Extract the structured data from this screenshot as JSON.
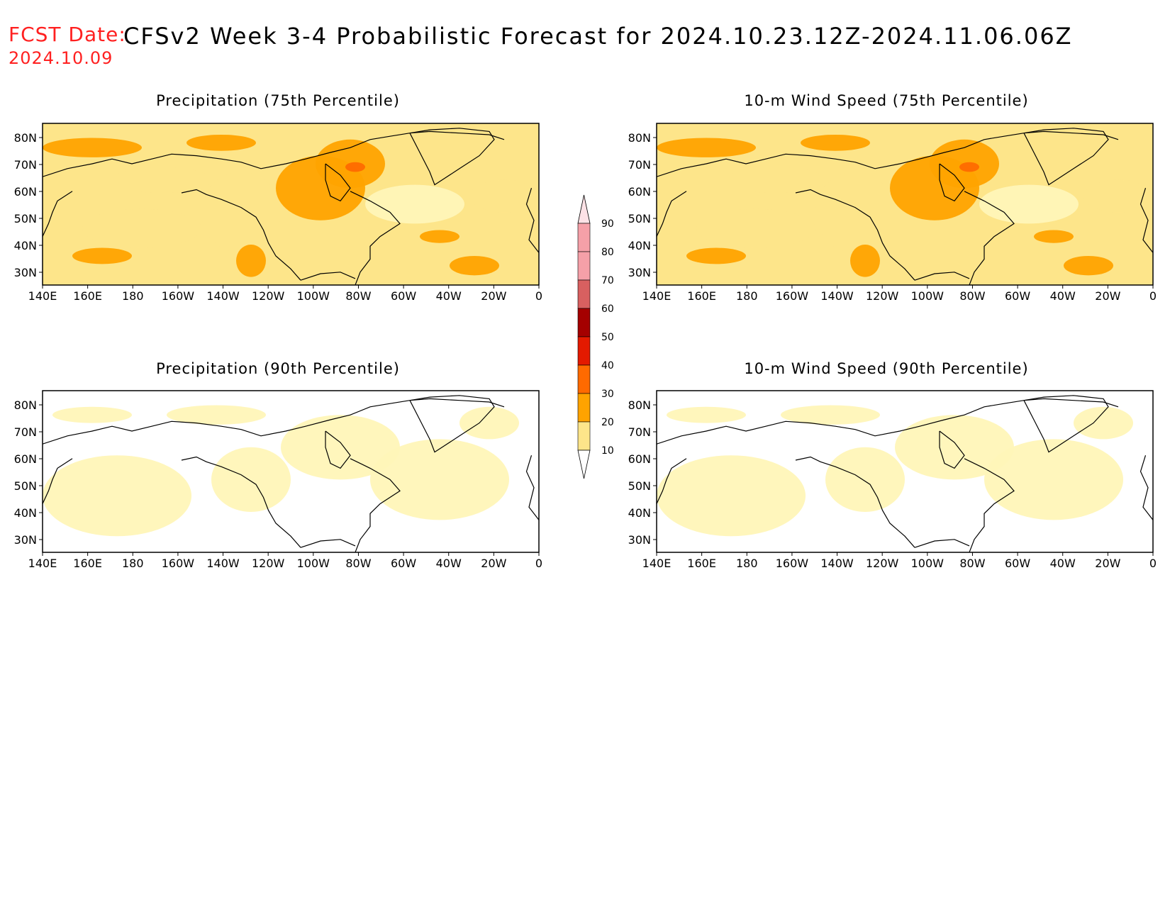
{
  "header": {
    "fcst_label": "FCST Date:",
    "fcst_date": "2024.10.09",
    "title": "CFSv2 Week 3-4 Probabilistic Forecast for 2024.10.23.12Z-2024.11.06.06Z"
  },
  "panels": [
    {
      "title": "Precipitation (75th Percentile)",
      "level": "high"
    },
    {
      "title": "10-m Wind Speed (75th Percentile)",
      "level": "high"
    },
    {
      "title": "Precipitation (90th Percentile)",
      "level": "low"
    },
    {
      "title": "10-m Wind Speed (90th Percentile)",
      "level": "low"
    }
  ],
  "axes": {
    "lon_labels": [
      "140E",
      "160E",
      "180",
      "160W",
      "140W",
      "120W",
      "100W",
      "80W",
      "60W",
      "40W",
      "20W",
      "0"
    ],
    "lat_labels": [
      "80N",
      "70N",
      "60N",
      "50N",
      "40N",
      "30N"
    ]
  },
  "colorbar": {
    "levels": [
      "10",
      "20",
      "30",
      "40",
      "50",
      "60",
      "70",
      "80",
      "90"
    ],
    "colors": [
      "#fff5b8",
      "#fde58a",
      "#ffa300",
      "#ff6a00",
      "#e31a00",
      "#a40000",
      "#d86060",
      "#f5a0a8",
      "#fde2e6"
    ]
  }
}
